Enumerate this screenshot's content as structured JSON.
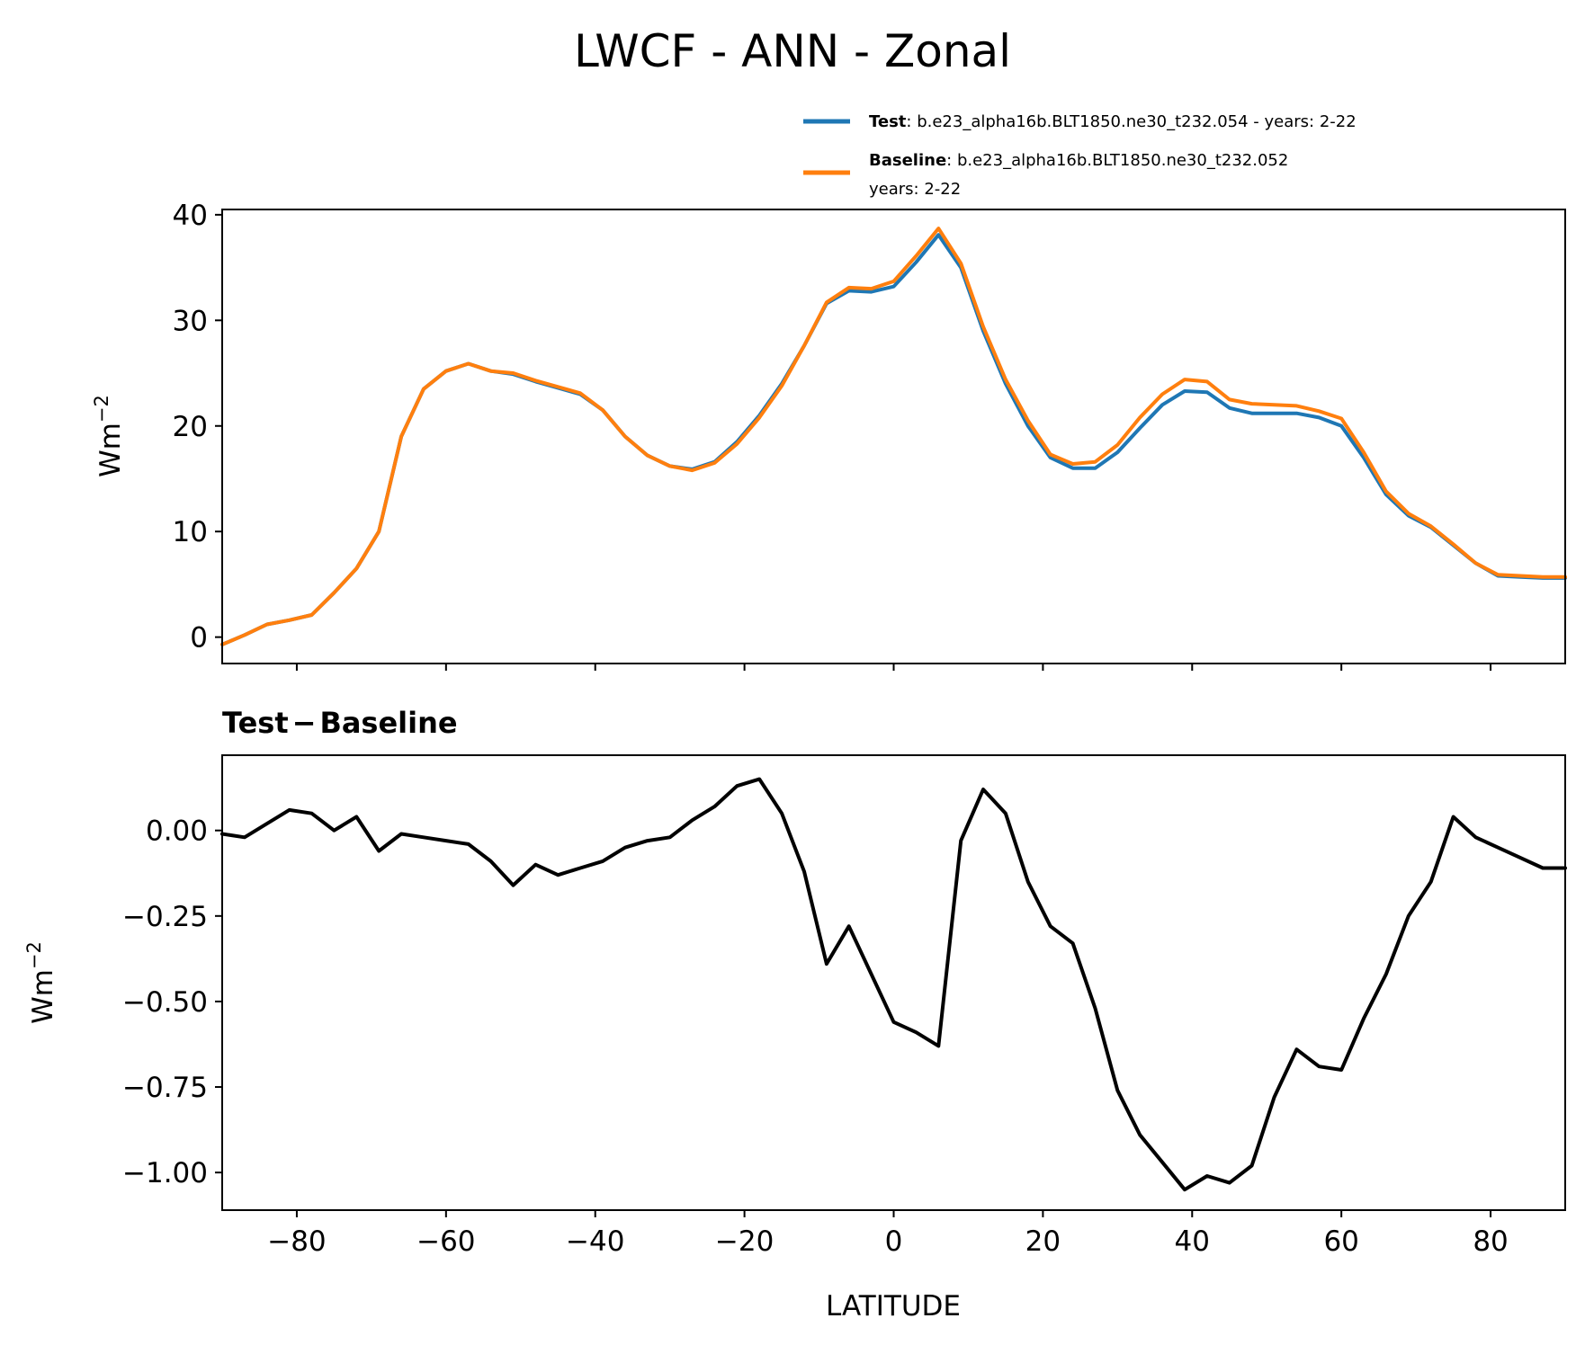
{
  "chart_data": {
    "title": "LWCF - ANN - Zonal",
    "xlabel": "LATITUDE",
    "xlim": [
      -90,
      90
    ],
    "xticks": [
      -80,
      -60,
      -40,
      -20,
      0,
      20,
      40,
      60,
      80
    ],
    "xticklabels": [
      "−80",
      "−60",
      "−40",
      "−20",
      "0",
      "20",
      "40",
      "60",
      "80"
    ],
    "x": [
      -90,
      -87,
      -84,
      -81,
      -78,
      -75,
      -72,
      -69,
      -66,
      -63,
      -60,
      -57,
      -54,
      -51,
      -48,
      -45,
      -42,
      -39,
      -36,
      -33,
      -30,
      -27,
      -24,
      -21,
      -18,
      -15,
      -12,
      -9,
      -6,
      -3,
      0,
      3,
      6,
      9,
      12,
      15,
      18,
      21,
      24,
      27,
      30,
      33,
      36,
      39,
      42,
      45,
      48,
      51,
      54,
      57,
      60,
      63,
      66,
      69,
      72,
      75,
      78,
      81,
      84,
      87,
      90
    ],
    "panels": [
      {
        "type": "line",
        "ylabel": "Wm",
        "ylabel_sup": "−2",
        "ylim": [
          -2.5,
          40.5
        ],
        "yticks": [
          0,
          10,
          20,
          30,
          40
        ],
        "yticklabels": [
          "0",
          "10",
          "20",
          "30",
          "40"
        ],
        "legend": {
          "placement": "top-right, above axes",
          "entries": [
            {
              "bold": "Test",
              "text": ": b.e23_alpha16b.BLT1850.ne30_t232.054 - years: 2-22",
              "line2": ""
            },
            {
              "bold": "Baseline",
              "text": ": b.e23_alpha16b.BLT1850.ne30_t232.052",
              "line2": "years: 2-22"
            }
          ]
        },
        "series": [
          {
            "name": "Test",
            "color": "#1f77b4",
            "values": [
              -0.7,
              0.2,
              1.2,
              1.6,
              2.1,
              4.2,
              6.5,
              10.0,
              19.0,
              23.5,
              25.2,
              25.9,
              25.2,
              24.9,
              24.2,
              23.6,
              23.0,
              21.5,
              19.0,
              17.2,
              16.2,
              15.9,
              16.6,
              18.5,
              21.0,
              24.0,
              27.6,
              31.6,
              32.8,
              32.7,
              33.2,
              35.5,
              38.1,
              35.0,
              29.0,
              24.0,
              20.0,
              17.0,
              16.0,
              16.0,
              17.5,
              19.8,
              22.0,
              23.3,
              23.2,
              21.7,
              21.2,
              21.2,
              21.2,
              20.8,
              20.0,
              17.0,
              13.5,
              11.5,
              10.4,
              8.7,
              7.0,
              5.8,
              5.7,
              5.6,
              5.6
            ]
          },
          {
            "name": "Baseline",
            "color": "#ff7f0e",
            "values": [
              -0.7,
              0.2,
              1.2,
              1.6,
              2.1,
              4.2,
              6.5,
              10.0,
              19.0,
              23.5,
              25.2,
              25.9,
              25.2,
              25.0,
              24.3,
              23.7,
              23.1,
              21.5,
              19.0,
              17.2,
              16.2,
              15.8,
              16.5,
              18.3,
              20.8,
              23.8,
              27.6,
              31.7,
              33.1,
              33.0,
              33.7,
              36.1,
              38.7,
              35.4,
              29.4,
              24.4,
              20.5,
              17.3,
              16.4,
              16.6,
              18.2,
              20.8,
              23.0,
              24.4,
              24.2,
              22.5,
              22.1,
              22.0,
              21.9,
              21.4,
              20.7,
              17.5,
              13.8,
              11.7,
              10.5,
              8.8,
              7.0,
              5.9,
              5.8,
              5.7,
              5.7
            ]
          }
        ]
      },
      {
        "type": "line",
        "subtitle_bold_left": "Test",
        "subtitle_op": "−",
        "subtitle_bold_right": "Baseline",
        "ylabel": "Wm",
        "ylabel_sup": "−2",
        "ylim": [
          -1.11,
          0.22
        ],
        "yticks": [
          0.0,
          -0.25,
          -0.5,
          -0.75,
          -1.0
        ],
        "yticklabels": [
          "0.00",
          "−0.25",
          "−0.50",
          "−0.75",
          "−1.00"
        ],
        "series": [
          {
            "name": "Test − Baseline",
            "color": "#000000",
            "values": [
              -0.01,
              -0.02,
              0.02,
              0.06,
              0.05,
              0.0,
              0.04,
              -0.06,
              -0.01,
              -0.02,
              -0.03,
              -0.04,
              -0.09,
              -0.16,
              -0.1,
              -0.13,
              -0.11,
              -0.09,
              -0.05,
              -0.03,
              -0.02,
              0.03,
              0.07,
              0.13,
              0.15,
              0.05,
              -0.12,
              -0.39,
              -0.28,
              -0.42,
              -0.56,
              -0.59,
              -0.63,
              -0.03,
              0.12,
              0.05,
              -0.15,
              -0.28,
              -0.33,
              -0.52,
              -0.76,
              -0.89,
              -0.97,
              -1.05,
              -1.01,
              -1.03,
              -0.98,
              -0.78,
              -0.64,
              -0.69,
              -0.7,
              -0.55,
              -0.42,
              -0.25,
              -0.15,
              0.04,
              -0.02,
              -0.05,
              -0.08,
              -0.11,
              -0.11
            ]
          }
        ]
      }
    ]
  }
}
